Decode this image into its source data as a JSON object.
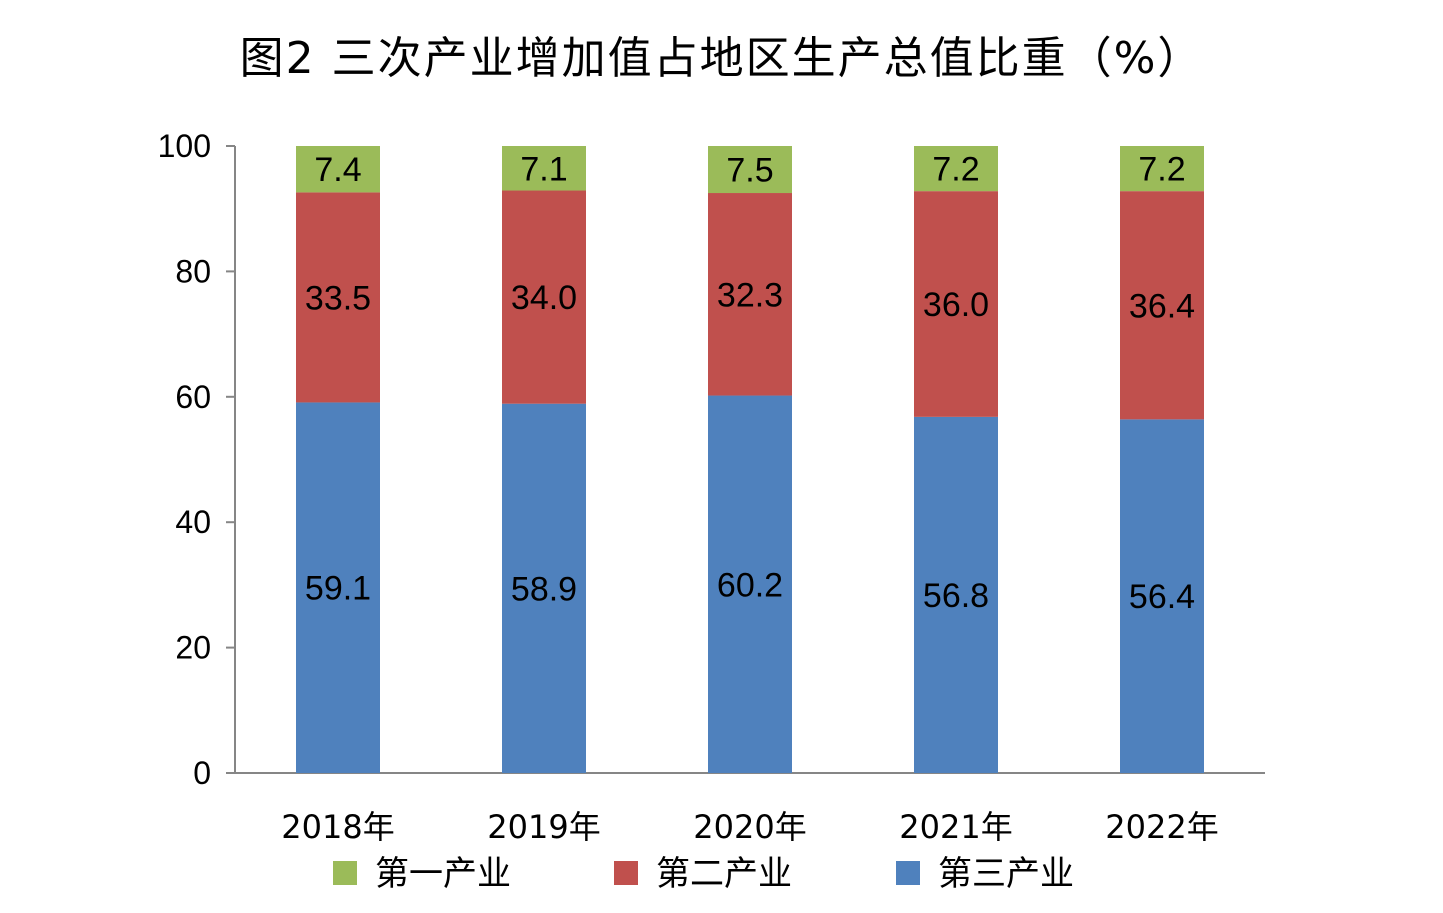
{
  "title": "图2  三次产业增加值占地区生产总值比重（%）",
  "chart_data": {
    "type": "bar",
    "stacked": true,
    "categories": [
      "2018年",
      "2019年",
      "2020年",
      "2021年",
      "2022年"
    ],
    "series": [
      {
        "name": "第三产业",
        "color": "#4F81BD",
        "values": [
          59.1,
          58.9,
          60.2,
          56.8,
          56.4
        ],
        "labels": [
          "59.1",
          "58.9",
          "60.2",
          "56.8",
          "56.4"
        ]
      },
      {
        "name": "第二产业",
        "color": "#C0504D",
        "values": [
          33.5,
          34.0,
          32.3,
          36.0,
          36.4
        ],
        "labels": [
          "33.5",
          "34.0",
          "32.3",
          "36.0",
          "36.4"
        ]
      },
      {
        "name": "第一产业",
        "color": "#9BBB59",
        "values": [
          7.4,
          7.1,
          7.5,
          7.2,
          7.2
        ],
        "labels": [
          "7.4",
          "7.1",
          "7.5",
          "7.2",
          "7.2"
        ]
      }
    ],
    "legend_order": [
      "第一产业",
      "第二产业",
      "第三产业"
    ],
    "legend_position": "bottom",
    "ylim": [
      0,
      100
    ],
    "yticks": [
      0,
      20,
      40,
      60,
      80,
      100
    ],
    "grid": false,
    "xlabel": "",
    "ylabel": ""
  }
}
